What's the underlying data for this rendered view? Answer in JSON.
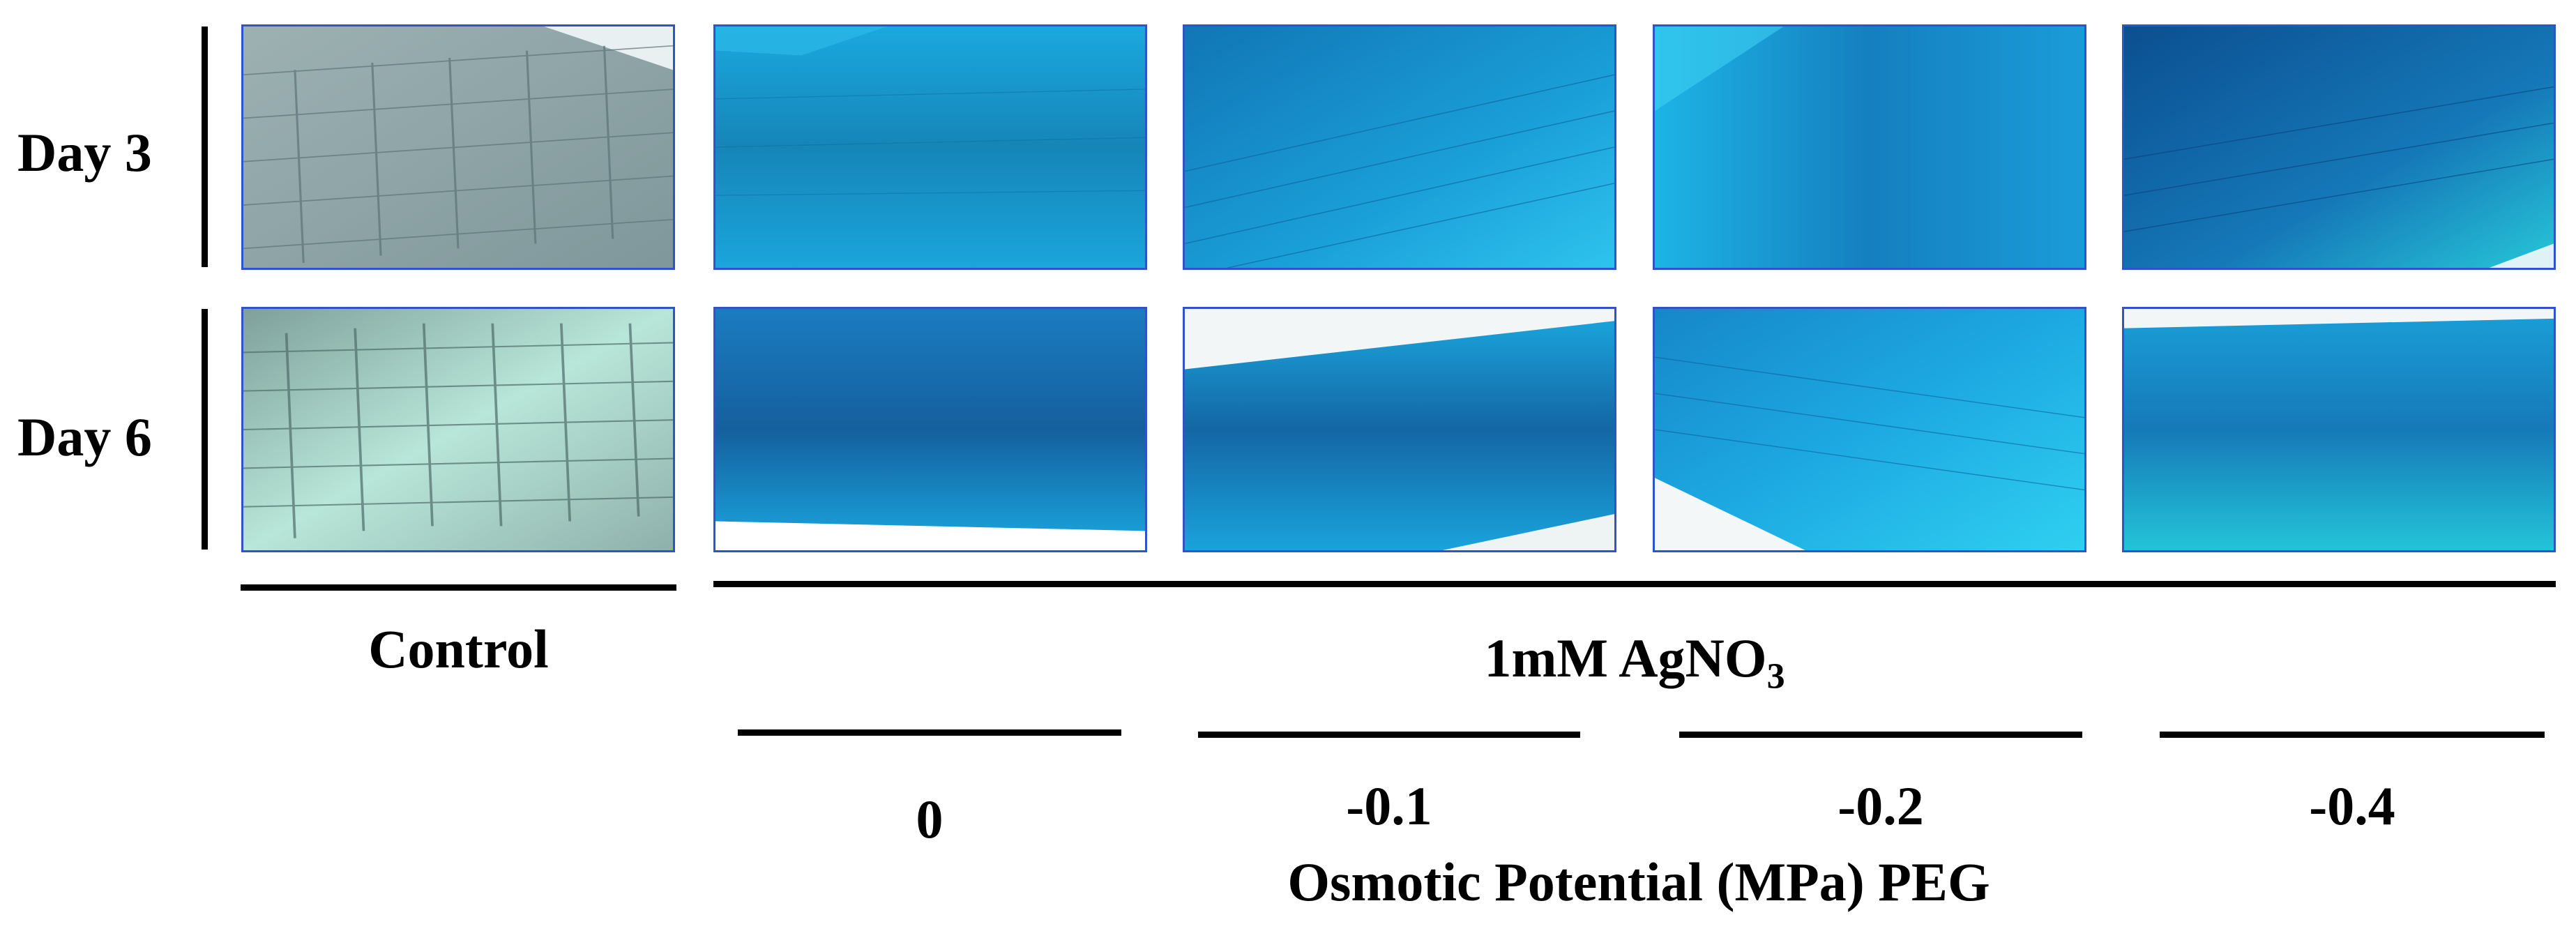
{
  "rows": [
    {
      "label": "Day 3"
    },
    {
      "label": "Day 6"
    }
  ],
  "groups": {
    "control": "Control",
    "treatment": "1mM AgNO",
    "treatment_sub": "3"
  },
  "levels": [
    "0",
    "-0.1",
    "-0.2",
    "-0.4"
  ],
  "axis_title": "Osmotic Potential (MPa) PEG",
  "panels": [
    {
      "row": "Day 3",
      "column": "Control",
      "tint": "grey-green"
    },
    {
      "row": "Day 3",
      "column": "0",
      "tint": "blue"
    },
    {
      "row": "Day 3",
      "column": "-0.1",
      "tint": "blue"
    },
    {
      "row": "Day 3",
      "column": "-0.2",
      "tint": "blue"
    },
    {
      "row": "Day 3",
      "column": "-0.4",
      "tint": "dark-blue"
    },
    {
      "row": "Day 6",
      "column": "Control",
      "tint": "pale-teal"
    },
    {
      "row": "Day 6",
      "column": "0",
      "tint": "blue"
    },
    {
      "row": "Day 6",
      "column": "-0.1",
      "tint": "blue"
    },
    {
      "row": "Day 6",
      "column": "-0.2",
      "tint": "blue"
    },
    {
      "row": "Day 6",
      "column": "-0.4",
      "tint": "blue"
    }
  ],
  "colors": {
    "panel_border": "#2f54c8",
    "stain_blue": "#18a9e0",
    "stain_dark": "#0b5fa6",
    "control_grey": "#8fa6a8",
    "control_teal": "#9ccfc4"
  }
}
